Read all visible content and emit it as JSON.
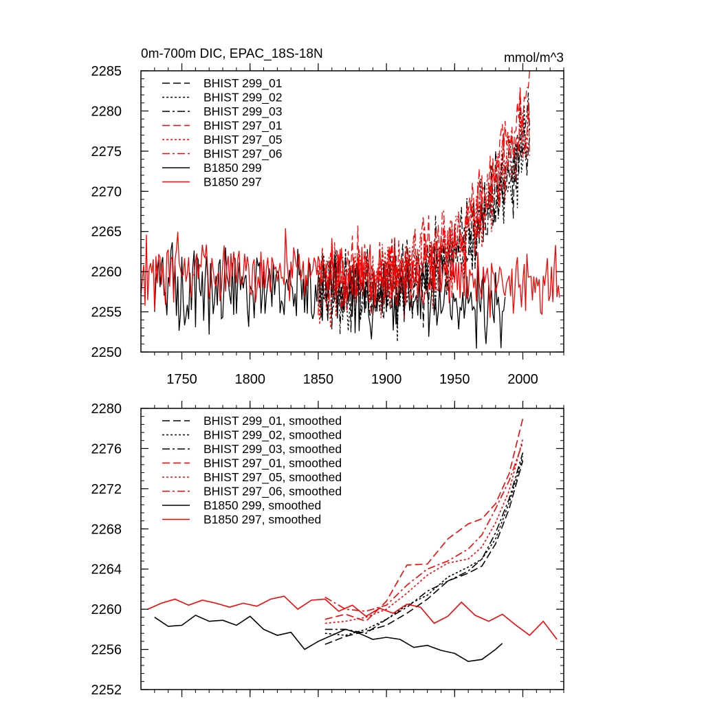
{
  "chart_data": [
    {
      "type": "line",
      "title": "0m-700m DIC, EPAC_18S-18N",
      "units": "mmol/m^3",
      "xlabel": "",
      "ylabel": "",
      "xlim": [
        1720,
        2030
      ],
      "ylim": [
        2250,
        2285
      ],
      "xticks": [
        1750,
        1800,
        1850,
        1900,
        1950,
        2000
      ],
      "xtick_labels": [
        "1750",
        "1800",
        "1850",
        "1900",
        "1950",
        "2000"
      ],
      "yticks": [
        2250,
        2255,
        2260,
        2265,
        2270,
        2275,
        2280,
        2285
      ],
      "ytick_labels": [
        "2250",
        "2255",
        "2260",
        "2265",
        "2270",
        "2275",
        "2280",
        "2285"
      ],
      "legend_position": "top-left",
      "series": [
        {
          "name": "BHIST 299_01",
          "color": "#000000",
          "dash": "dash",
          "noisy": true,
          "kind": "hist",
          "x_start": 1850,
          "x_end": 2005,
          "base": 2257.8,
          "amp": 2.5,
          "end_value": 2277.0,
          "seed": 11
        },
        {
          "name": "BHIST 299_02",
          "color": "#000000",
          "dash": "dot",
          "noisy": true,
          "kind": "hist",
          "x_start": 1850,
          "x_end": 2005,
          "base": 2257.5,
          "amp": 2.6,
          "end_value": 2276.5,
          "seed": 12
        },
        {
          "name": "BHIST 299_03",
          "color": "#000000",
          "dash": "dashdot",
          "noisy": true,
          "kind": "hist",
          "x_start": 1850,
          "x_end": 2005,
          "base": 2257.8,
          "amp": 2.4,
          "end_value": 2277.5,
          "seed": 13
        },
        {
          "name": "BHIST 297_01",
          "color": "#ff0000",
          "dash": "dash",
          "noisy": true,
          "kind": "hist",
          "x_start": 1850,
          "x_end": 2005,
          "base": 2259.0,
          "amp": 2.5,
          "end_value": 2282.0,
          "seed": 14
        },
        {
          "name": "BHIST 297_05",
          "color": "#ff0000",
          "dash": "dot",
          "noisy": true,
          "kind": "hist",
          "x_start": 1850,
          "x_end": 2005,
          "base": 2259.0,
          "amp": 2.4,
          "end_value": 2279.0,
          "seed": 15
        },
        {
          "name": "BHIST 297_06",
          "color": "#ff0000",
          "dash": "dashdot",
          "noisy": true,
          "kind": "hist",
          "x_start": 1850,
          "x_end": 2005,
          "base": 2259.2,
          "amp": 2.4,
          "end_value": 2278.5,
          "seed": 16
        },
        {
          "name": "B1850 299",
          "color": "#000000",
          "dash": "solid",
          "noisy": true,
          "kind": "ctrl",
          "x_start": 1730,
          "x_end": 1987,
          "base": 2258.5,
          "base_end": 2256.0,
          "amp": 2.4,
          "seed": 21
        },
        {
          "name": "B1850 297",
          "color": "#ff0000",
          "dash": "solid",
          "noisy": true,
          "kind": "ctrl",
          "x_start": 1720,
          "x_end": 2027,
          "base": 2260.5,
          "base_end": 2258.5,
          "amp": 2.0,
          "seed": 22
        }
      ]
    },
    {
      "type": "line",
      "title": "",
      "xlabel": "",
      "ylabel": "",
      "xlim": [
        1720,
        2030
      ],
      "ylim": [
        2252,
        2280
      ],
      "xticks": [
        1750,
        1800,
        1850,
        1900,
        1950,
        2000
      ],
      "yticks": [
        2252,
        2256,
        2260,
        2264,
        2268,
        2272,
        2276,
        2280
      ],
      "ytick_labels": [
        "2252",
        "2256",
        "2260",
        "2264",
        "2268",
        "2272",
        "2276",
        "2280"
      ],
      "legend_position": "top-left",
      "series": [
        {
          "name": "BHIST 299_01, smoothed",
          "color": "#000000",
          "dash": "dash",
          "noisy": false,
          "x": [
            1855,
            1870,
            1885,
            1900,
            1915,
            1930,
            1945,
            1960,
            1970,
            1980,
            1990,
            2000
          ],
          "values": [
            2256.5,
            2257.3,
            2257.8,
            2258.4,
            2259.6,
            2261.0,
            2262.8,
            2263.6,
            2264.3,
            2266.5,
            2270.0,
            2274.8
          ]
        },
        {
          "name": "BHIST 299_02, smoothed",
          "color": "#000000",
          "dash": "dot",
          "noisy": false,
          "x": [
            1855,
            1870,
            1885,
            1900,
            1915,
            1930,
            1945,
            1960,
            1970,
            1980,
            1990,
            2000
          ],
          "values": [
            2257.6,
            2257.4,
            2258.0,
            2259.0,
            2260.4,
            2261.4,
            2263.2,
            2264.2,
            2265.0,
            2267.0,
            2270.6,
            2275.2
          ]
        },
        {
          "name": "BHIST 299_03, smoothed",
          "color": "#000000",
          "dash": "dashdot",
          "noisy": false,
          "x": [
            1855,
            1870,
            1885,
            1900,
            1915,
            1930,
            1945,
            1960,
            1970,
            1980,
            1990,
            2000
          ],
          "values": [
            2258.0,
            2258.0,
            2257.6,
            2259.0,
            2260.2,
            2261.8,
            2262.8,
            2263.8,
            2265.0,
            2267.6,
            2271.0,
            2275.6
          ]
        },
        {
          "name": "BHIST 297_01, smoothed",
          "color": "#ff0000",
          "dash": "dash",
          "noisy": false,
          "x": [
            1855,
            1870,
            1885,
            1900,
            1915,
            1930,
            1945,
            1960,
            1970,
            1980,
            1990,
            2000
          ],
          "values": [
            2259.0,
            2259.5,
            2258.8,
            2260.8,
            2264.4,
            2264.5,
            2267.0,
            2268.5,
            2269.0,
            2270.5,
            2273.5,
            2279.0
          ]
        },
        {
          "name": "BHIST 297_05, smoothed",
          "color": "#ff0000",
          "dash": "dot",
          "noisy": false,
          "x": [
            1855,
            1870,
            1885,
            1900,
            1915,
            1930,
            1945,
            1960,
            1970,
            1980,
            1990,
            2000
          ],
          "values": [
            2258.6,
            2258.8,
            2259.2,
            2260.0,
            2261.6,
            2263.4,
            2264.6,
            2265.0,
            2266.2,
            2268.6,
            2271.8,
            2277.0
          ]
        },
        {
          "name": "BHIST 297_06, smoothed",
          "color": "#ff0000",
          "dash": "dashdot",
          "noisy": false,
          "x": [
            1855,
            1870,
            1885,
            1900,
            1915,
            1930,
            1945,
            1960,
            1970,
            1980,
            1990,
            2000
          ],
          "values": [
            2261.2,
            2260.0,
            2259.8,
            2260.4,
            2262.4,
            2264.0,
            2264.8,
            2266.0,
            2267.4,
            2270.0,
            2272.8,
            2276.6
          ]
        },
        {
          "name": "B1850 299, smoothed",
          "color": "#000000",
          "dash": "solid",
          "noisy": false,
          "x": [
            1730,
            1740,
            1750,
            1760,
            1770,
            1780,
            1790,
            1800,
            1810,
            1820,
            1830,
            1840,
            1850,
            1860,
            1870,
            1880,
            1890,
            1900,
            1910,
            1920,
            1930,
            1940,
            1950,
            1960,
            1970,
            1980,
            1985
          ],
          "values": [
            2259.2,
            2258.3,
            2258.4,
            2259.4,
            2258.8,
            2258.9,
            2258.4,
            2259.3,
            2258.0,
            2257.4,
            2257.7,
            2256.0,
            2256.8,
            2257.4,
            2258.0,
            2257.6,
            2257.0,
            2257.2,
            2257.0,
            2256.2,
            2256.4,
            2255.9,
            2255.6,
            2254.8,
            2255.0,
            2256.0,
            2256.6
          ]
        },
        {
          "name": "B1850 297, smoothed",
          "color": "#ff0000",
          "dash": "solid",
          "noisy": false,
          "x": [
            1725,
            1735,
            1745,
            1755,
            1765,
            1775,
            1785,
            1795,
            1805,
            1815,
            1825,
            1835,
            1845,
            1855,
            1865,
            1875,
            1885,
            1895,
            1905,
            1915,
            1925,
            1935,
            1945,
            1955,
            1965,
            1975,
            1985,
            1995,
            2005,
            2015,
            2025
          ],
          "values": [
            2260.0,
            2260.6,
            2261.0,
            2260.4,
            2260.9,
            2260.6,
            2260.2,
            2260.6,
            2260.3,
            2261.0,
            2261.3,
            2260.0,
            2260.9,
            2261.0,
            2259.8,
            2260.4,
            2259.3,
            2260.1,
            2259.6,
            2260.5,
            2260.2,
            2258.6,
            2259.3,
            2260.7,
            2259.4,
            2258.8,
            2259.5,
            2258.4,
            2257.4,
            2258.8,
            2257.0
          ]
        }
      ]
    }
  ]
}
